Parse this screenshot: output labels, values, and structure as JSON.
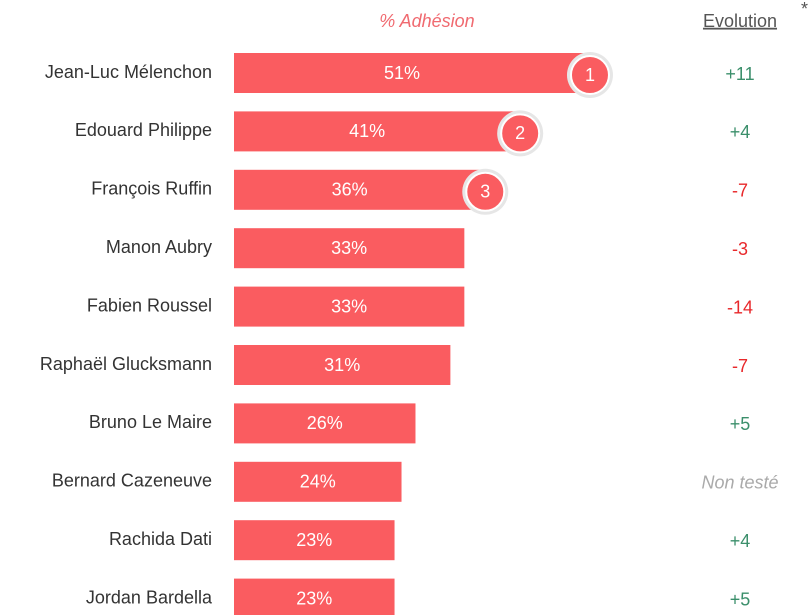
{
  "chart_data": {
    "type": "bar",
    "orientation": "horizontal",
    "header": "% Adhésion",
    "evolution_header": "Evolution",
    "evolution_note": "*",
    "categories": [
      "Jean-Luc Mélenchon",
      "Edouard Philippe",
      "François Ruffin",
      "Manon Aubry",
      "Fabien Roussel",
      "Raphaël Glucksmann",
      "Bruno Le Maire",
      "Bernard Cazeneuve",
      "Rachida Dati",
      "Jordan Bardella"
    ],
    "values": [
      51,
      41,
      36,
      33,
      33,
      31,
      26,
      24,
      23,
      23
    ],
    "value_labels": [
      "51%",
      "41%",
      "36%",
      "33%",
      "33%",
      "31%",
      "26%",
      "24%",
      "23%",
      "23%"
    ],
    "color": "#fa5c60",
    "ranks": [
      1,
      2,
      3
    ],
    "evolution": [
      "+11",
      "+4",
      "-7",
      "-3",
      "-14",
      "-7",
      "+5",
      "Non testé",
      "+4",
      "+5"
    ]
  }
}
